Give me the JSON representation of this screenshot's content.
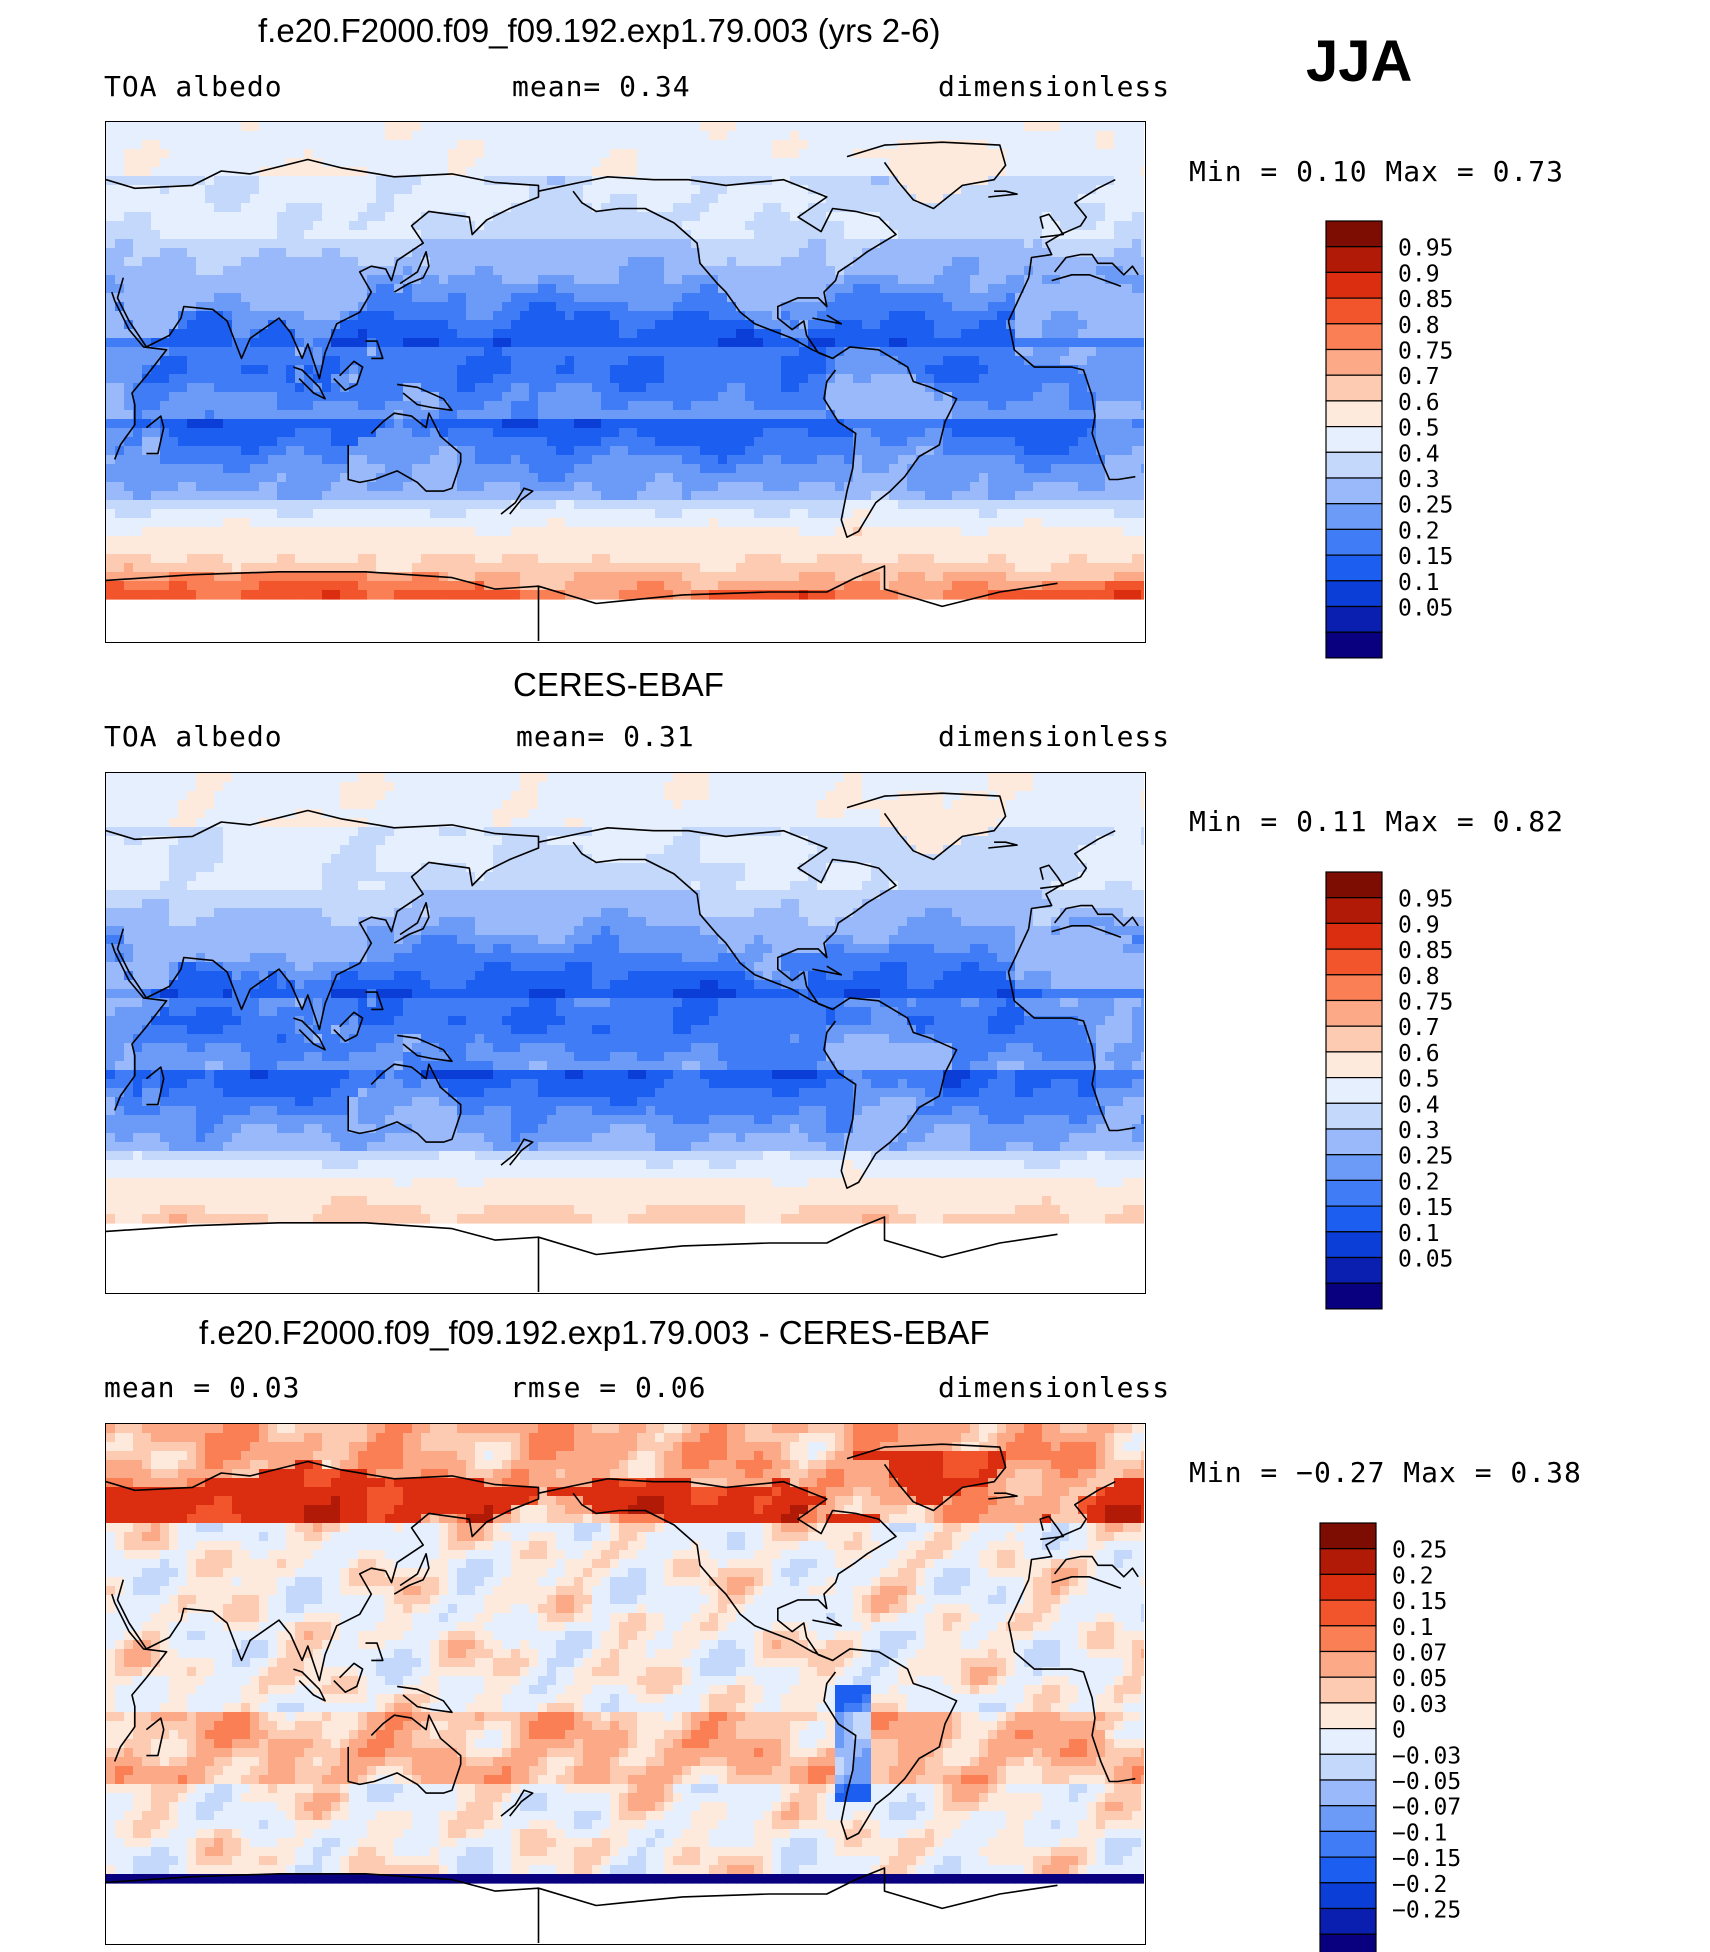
{
  "season": "JJA",
  "palettes": {
    "abs": [
      "#08007e",
      "#0a1fb0",
      "#0a3ed6",
      "#1c5ef0",
      "#3f7cf5",
      "#6b9af7",
      "#9ab9fa",
      "#c4d8fb",
      "#e6effd",
      "#fdeadd",
      "#fccbb1",
      "#fba987",
      "#fa7f55",
      "#f2542c",
      "#db2d0f",
      "#b01a06",
      "#7d0d02"
    ],
    "diff": [
      "#08007e",
      "#0a1fb0",
      "#0a3ed6",
      "#1c5ef0",
      "#3f7cf5",
      "#6b9af7",
      "#9ab9fa",
      "#c4d8fb",
      "#e6effd",
      "#fdeadd",
      "#fccbb1",
      "#fba987",
      "#fa7f55",
      "#f2542c",
      "#db2d0f",
      "#b01a06",
      "#7d0d02"
    ],
    "outline": "#000000"
  },
  "panels": [
    {
      "title": "f.e20.F2000.f09_f09.192.exp1.79.003 (yrs 2-6)",
      "left": "TOA  albedo",
      "center": "mean=    0.34",
      "right": "dimensionless",
      "minmax": "Min  =     0.10  Max  =     0.73",
      "levels": [
        "0.95",
        "0.9",
        "0.85",
        "0.8",
        "0.75",
        "0.7",
        "0.6",
        "0.5",
        "0.4",
        "0.3",
        "0.25",
        "0.2",
        "0.15",
        "0.1",
        "0.05"
      ],
      "kind": "model"
    },
    {
      "title": "CERES-EBAF",
      "left": "TOA  albedo",
      "center": "mean=    0.31",
      "right": "dimensionless",
      "minmax": "Min  =     0.11  Max  =     0.82",
      "levels": [
        "0.95",
        "0.9",
        "0.85",
        "0.8",
        "0.75",
        "0.7",
        "0.6",
        "0.5",
        "0.4",
        "0.3",
        "0.25",
        "0.2",
        "0.15",
        "0.1",
        "0.05"
      ],
      "kind": "obs"
    },
    {
      "title": "f.e20.F2000.f09_f09.192.exp1.79.003 - CERES-EBAF",
      "left": "mean  =     0.03",
      "center": "rmse  =     0.06",
      "right": "dimensionless",
      "minmax": "Min  =   −0.27  Max  =     0.38",
      "levels": [
        "0.25",
        "0.2",
        "0.15",
        "0.1",
        "0.07",
        "0.05",
        "0.03",
        "0",
        "−0.03",
        "−0.05",
        "−0.07",
        "−0.1",
        "−0.15",
        "−0.2",
        "−0.25"
      ],
      "kind": "diff"
    }
  ],
  "chart_data": [
    {
      "type": "heatmap",
      "title": "f.e20.F2000.f09_f09.192.exp1.79.003 (yrs 2-6)",
      "field": "TOA albedo",
      "units": "dimensionless",
      "mean": 0.34,
      "min": 0.1,
      "max": 0.73,
      "contour_levels": [
        0.05,
        0.1,
        0.15,
        0.2,
        0.25,
        0.3,
        0.4,
        0.5,
        0.6,
        0.7,
        0.75,
        0.8,
        0.85,
        0.9,
        0.95
      ]
    },
    {
      "type": "heatmap",
      "title": "CERES-EBAF",
      "field": "TOA albedo",
      "units": "dimensionless",
      "mean": 0.31,
      "min": 0.11,
      "max": 0.82,
      "contour_levels": [
        0.05,
        0.1,
        0.15,
        0.2,
        0.25,
        0.3,
        0.4,
        0.5,
        0.6,
        0.7,
        0.75,
        0.8,
        0.85,
        0.9,
        0.95
      ]
    },
    {
      "type": "heatmap",
      "title": "f.e20.F2000.f09_f09.192.exp1.79.003 - CERES-EBAF",
      "units": "dimensionless",
      "mean": 0.03,
      "rmse": 0.06,
      "min": -0.27,
      "max": 0.38,
      "contour_levels": [
        -0.25,
        -0.2,
        -0.15,
        -0.1,
        -0.07,
        -0.05,
        -0.03,
        0,
        0.03,
        0.05,
        0.07,
        0.1,
        0.15,
        0.2,
        0.25
      ]
    }
  ]
}
